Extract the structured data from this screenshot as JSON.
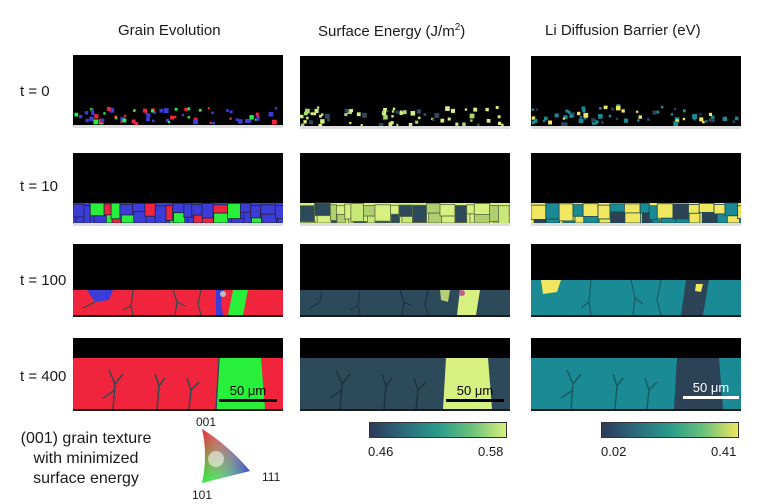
{
  "columns": [
    {
      "title": "Grain Evolution"
    },
    {
      "title_prefix": "Surface Energy (J/m",
      "title_sup": "2",
      "title_suffix": ")"
    },
    {
      "title": "Li Diffusion Barrier (eV)"
    }
  ],
  "rows": [
    {
      "label": "t = 0"
    },
    {
      "label": "t = 10"
    },
    {
      "label": "t = 100"
    },
    {
      "label": "t = 400"
    }
  ],
  "scale_bar": "50 μm",
  "colorbars": {
    "surface_energy": {
      "min": "0.46",
      "max": "0.58"
    },
    "diffusion_barrier": {
      "min": "0.02",
      "max": "0.41"
    }
  },
  "texture": {
    "lines": [
      "(001) grain texture",
      "with minimized",
      "surface energy"
    ],
    "tri_top": "001",
    "tri_right": "111",
    "tri_bottom": "101"
  },
  "colors": {
    "grain_red": "#f0243c",
    "grain_green": "#28f03a",
    "grain_blue": "#3c3cd8",
    "energy_dark": "#2c4a5a",
    "energy_bright": "#d8f080",
    "barrier_teal": "#1a8a94",
    "barrier_dark": "#2c4256",
    "barrier_yellow": "#f0e660",
    "boundary": "#2f4b4f"
  }
}
